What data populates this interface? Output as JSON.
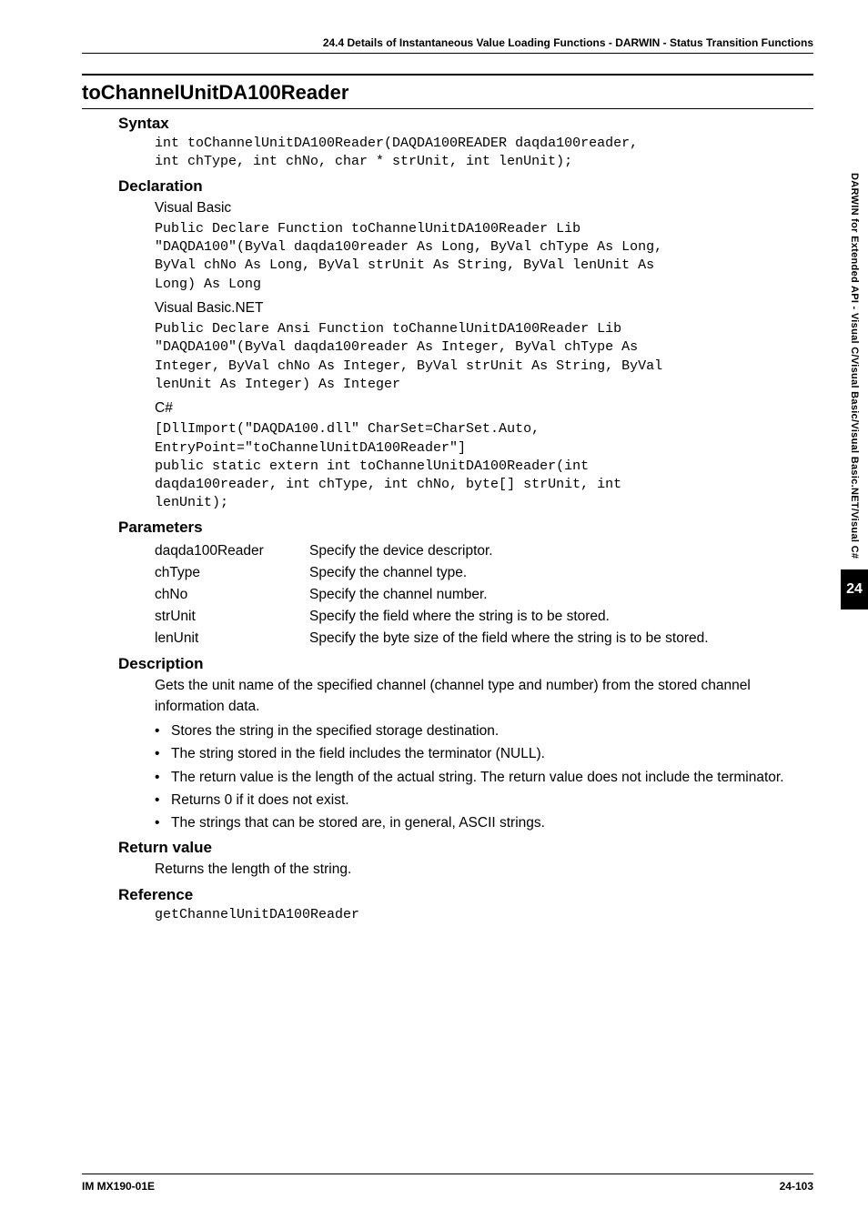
{
  "header": "24.4  Details of Instantaneous Value Loading Functions - DARWIN - Status Transition Functions",
  "title": "toChannelUnitDA100Reader",
  "sections": {
    "syntax": {
      "heading": "Syntax",
      "code": "int toChannelUnitDA100Reader(DAQDA100READER daqda100reader,\nint chType, int chNo, char * strUnit, int lenUnit);"
    },
    "declaration": {
      "heading": "Declaration",
      "vb_label": "Visual Basic",
      "vb_code": "Public Declare Function toChannelUnitDA100Reader Lib\n\"DAQDA100\"(ByVal daqda100reader As Long, ByVal chType As Long,\nByVal chNo As Long, ByVal strUnit As String, ByVal lenUnit As\nLong) As Long",
      "vbnet_label": "Visual Basic.NET",
      "vbnet_code": "Public Declare Ansi Function toChannelUnitDA100Reader Lib\n\"DAQDA100\"(ByVal daqda100reader As Integer, ByVal chType As\nInteger, ByVal chNo As Integer, ByVal strUnit As String, ByVal\nlenUnit As Integer) As Integer",
      "csharp_label": "C#",
      "csharp_code": "[DllImport(\"DAQDA100.dll\" CharSet=CharSet.Auto,\nEntryPoint=\"toChannelUnitDA100Reader\"]\npublic static extern int toChannelUnitDA100Reader(int\ndaqda100reader, int chType, int chNo, byte[] strUnit, int\nlenUnit);"
    },
    "parameters": {
      "heading": "Parameters",
      "rows": [
        {
          "name": "daqda100Reader",
          "desc": "Specify the device descriptor."
        },
        {
          "name": "chType",
          "desc": "Specify the channel type."
        },
        {
          "name": "chNo",
          "desc": "Specify the channel number."
        },
        {
          "name": "strUnit",
          "desc": "Specify the field where the string is to be stored."
        },
        {
          "name": "lenUnit",
          "desc": "Specify the byte size of the field where the string is to be stored."
        }
      ]
    },
    "description": {
      "heading": "Description",
      "intro": "Gets the unit name of the specified channel (channel type and number) from the stored channel information data.",
      "bullets": [
        "Stores the string in the specified storage destination.",
        "The string stored in the field includes the terminator (NULL).",
        "The return value is the length of the actual string.  The return value does not include the terminator.",
        "Returns 0 if it does not exist.",
        "The strings that can be stored are, in general, ASCII strings."
      ]
    },
    "return_value": {
      "heading": "Return value",
      "text": "Returns the length of the string."
    },
    "reference": {
      "heading": "Reference",
      "code": "getChannelUnitDA100Reader"
    }
  },
  "side_tab": {
    "vertical": "DARWIN for Extended API - Visual C/Visual Basic/Visual Basic.NET/Visual C#",
    "number": "24"
  },
  "footer": {
    "left": "IM MX190-01E",
    "right": "24-103"
  }
}
